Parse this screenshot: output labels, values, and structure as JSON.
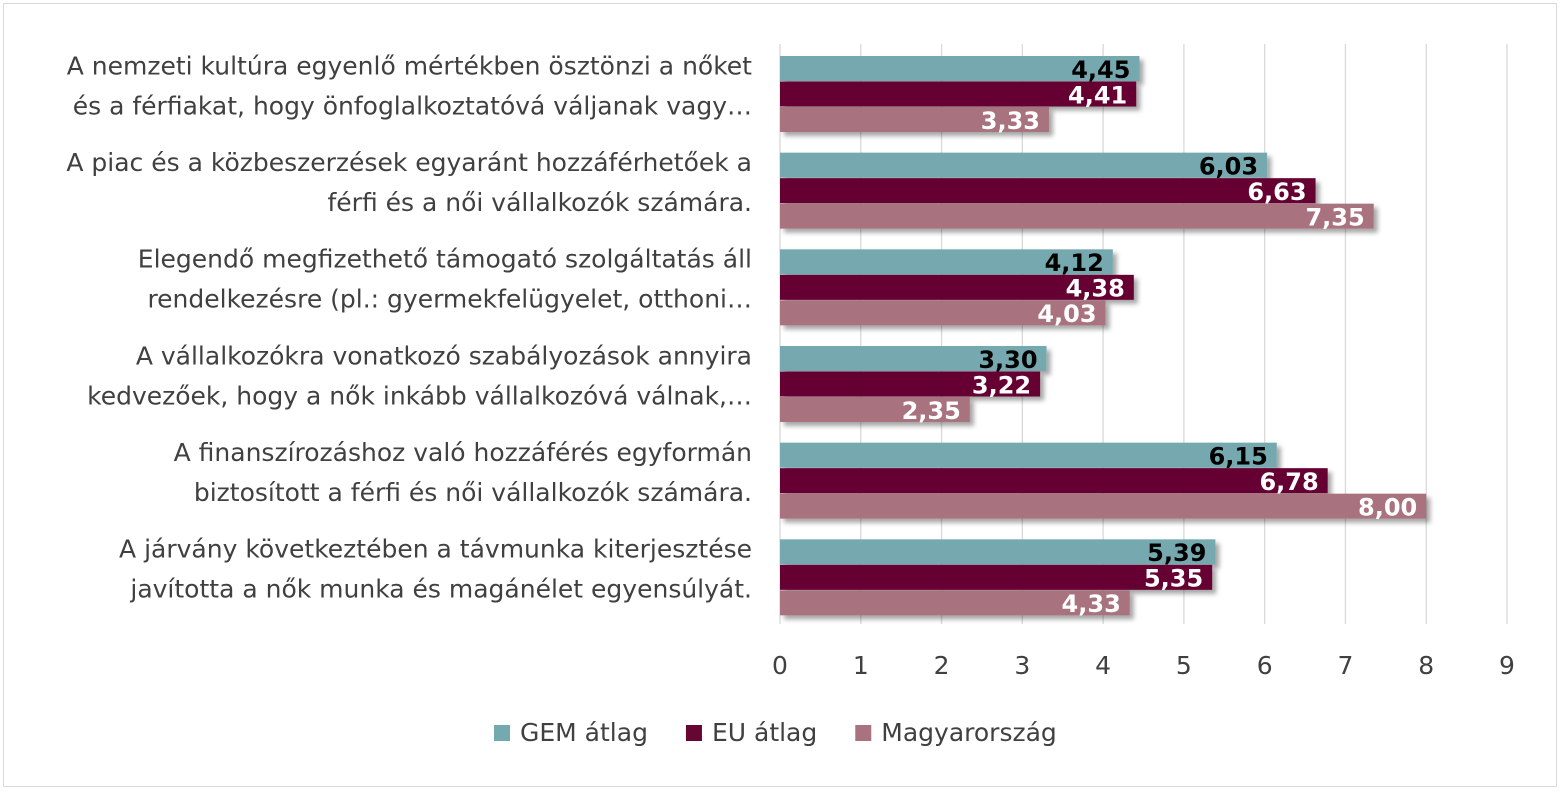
{
  "chart_data": {
    "type": "bar",
    "orientation": "horizontal",
    "categories": [
      [
        "A nemzeti kultúra egyenlő mértékben ösztönzi a nőket",
        "és a férfiakat, hogy önfoglalkoztatóvá váljanak vagy…"
      ],
      [
        "A piac és a közbeszerzések egyaránt hozzáférhetőek a",
        "férfi és a női vállalkozók számára."
      ],
      [
        "Elegendő megfizethető támogató szolgáltatás áll",
        "rendelkezésre (pl.: gyermekfelügyelet, otthoni…"
      ],
      [
        "A vállalkozókra vonatkozó szabályozások annyira",
        "kedvezőek, hogy a nők inkább vállalkozóvá válnak,…"
      ],
      [
        "A finanszírozáshoz való hozzáférés egyformán",
        "biztosított a férfi és női vállalkozók számára."
      ],
      [
        "A járvány következtében a távmunka kiterjesztése",
        "javította a nők munka és magánélet egyensúlyát."
      ]
    ],
    "series": [
      {
        "name": "GEM átlag",
        "color": "#74a9af",
        "label_color": "#000000",
        "values": [
          4.45,
          6.03,
          4.12,
          3.3,
          6.15,
          5.39
        ],
        "labels": [
          "4,45",
          "6,03",
          "4,12",
          "3,30",
          "6,15",
          "5,39"
        ]
      },
      {
        "name": "EU átlag",
        "color": "#660633",
        "label_color": "#ffffff",
        "values": [
          4.41,
          6.63,
          4.38,
          3.22,
          6.78,
          5.35
        ],
        "labels": [
          "4,41",
          "6,63",
          "4,38",
          "3,22",
          "6,78",
          "5,35"
        ]
      },
      {
        "name": "Magyarország",
        "color": "#a8737f",
        "label_color": "#ffffff",
        "values": [
          3.33,
          7.35,
          4.03,
          2.35,
          8.0,
          4.33
        ],
        "labels": [
          "3,33",
          "7,35",
          "4,03",
          "2,35",
          "8,00",
          "4,33"
        ]
      }
    ],
    "xlim": [
      0,
      9
    ],
    "xticks": [
      "0",
      "1",
      "2",
      "3",
      "4",
      "5",
      "6",
      "7",
      "8",
      "9"
    ],
    "grid": true,
    "legend_position": "bottom",
    "title": "",
    "xlabel": "",
    "ylabel": ""
  }
}
